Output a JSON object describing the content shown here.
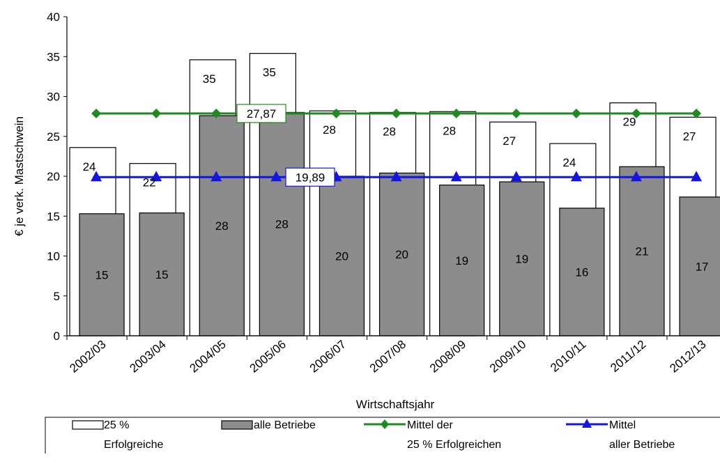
{
  "chart_data": {
    "type": "bar",
    "title": "",
    "xlabel": "Wirtschaftsjahr",
    "ylabel": "€ je verk. Mastschwein",
    "ylim": [
      0,
      40
    ],
    "yticks": [
      0,
      5,
      10,
      15,
      20,
      25,
      30,
      35,
      40
    ],
    "categories": [
      "2002/03",
      "2003/04",
      "2004/05",
      "2005/06",
      "2006/07",
      "2007/08",
      "2008/09",
      "2009/10",
      "2010/11",
      "2011/12",
      "2012/13"
    ],
    "series": [
      {
        "name_line1": "25 %",
        "name_line2": "Erfolgreiche",
        "kind": "bar",
        "color": "#ffffff",
        "values": [
          23.6,
          21.6,
          34.6,
          35.4,
          28.2,
          28.0,
          28.1,
          26.8,
          24.1,
          29.2,
          27.4
        ],
        "labels": [
          "24",
          "22",
          "35",
          "35",
          "28",
          "28",
          "28",
          "27",
          "24",
          "29",
          "27"
        ]
      },
      {
        "name": "alle Betriebe",
        "kind": "bar",
        "color": "#8c8c8c",
        "values": [
          15.3,
          15.4,
          27.6,
          28.0,
          20.0,
          20.4,
          18.9,
          19.3,
          16.0,
          21.2,
          17.4
        ],
        "labels": [
          "15",
          "15",
          "28",
          "28",
          "20",
          "20",
          "19",
          "19",
          "16",
          "21",
          "17"
        ]
      },
      {
        "name_line1": "Mittel der",
        "name_line2": "25 % Erfolgreichen",
        "kind": "line",
        "marker": "diamond",
        "color": "#1f8a1f",
        "value": 27.87,
        "label": "27,87"
      },
      {
        "name_line1": "Mittel",
        "name_line2": "aller Betriebe",
        "kind": "line",
        "marker": "triangle",
        "color": "#1515e0",
        "value": 19.89,
        "label": "19,89"
      }
    ],
    "grid": false,
    "legend_position": "bottom"
  }
}
